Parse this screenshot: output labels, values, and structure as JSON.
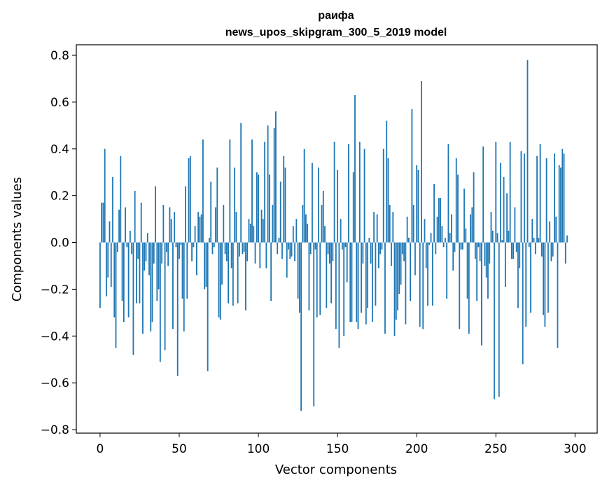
{
  "chart_data": {
    "type": "bar",
    "title": "раифа",
    "subtitle": "news_upos_skipgram_300_5_2019 model",
    "xlabel": "Vector components",
    "ylabel": "Components values",
    "xlim": [
      -15,
      314
    ],
    "ylim": [
      -0.815,
      0.845
    ],
    "xticks": [
      0,
      50,
      100,
      150,
      200,
      250,
      300
    ],
    "yticks": [
      -0.8,
      -0.6,
      -0.4,
      -0.2,
      0.0,
      0.2,
      0.4,
      0.6,
      0.8
    ],
    "ytick_labels": [
      "−0.8",
      "−0.6",
      "−0.4",
      "−0.2",
      "0.0",
      "0.2",
      "0.4",
      "0.6",
      "0.8"
    ],
    "bar_color": "#1f77b4",
    "values": [
      -0.28,
      0.17,
      0.17,
      0.4,
      -0.23,
      -0.15,
      0.09,
      -0.19,
      0.28,
      -0.32,
      -0.45,
      -0.04,
      0.14,
      0.37,
      -0.25,
      -0.34,
      0.15,
      -0.02,
      -0.32,
      0.05,
      -0.05,
      -0.48,
      0.22,
      -0.26,
      -0.07,
      -0.26,
      0.17,
      -0.39,
      -0.12,
      -0.08,
      0.04,
      -0.14,
      -0.38,
      -0.34,
      -0.09,
      0.24,
      -0.25,
      -0.2,
      -0.51,
      -0.09,
      0.16,
      -0.46,
      -0.04,
      -0.1,
      0.15,
      0.1,
      -0.37,
      0.13,
      -0.02,
      -0.57,
      -0.07,
      -0.01,
      -0.24,
      -0.38,
      0.24,
      -0.24,
      0.36,
      0.37,
      -0.08,
      -0.02,
      0.07,
      -0.14,
      0.13,
      0.11,
      0.12,
      0.44,
      -0.2,
      -0.19,
      -0.55,
      0.02,
      0.26,
      -0.05,
      -0.02,
      0.15,
      0.32,
      -0.32,
      -0.33,
      -0.18,
      0.16,
      -0.05,
      -0.08,
      -0.26,
      0.44,
      -0.11,
      -0.27,
      0.32,
      0.13,
      -0.26,
      -0.06,
      0.51,
      -0.05,
      -0.04,
      -0.29,
      -0.08,
      0.1,
      0.08,
      0.44,
      0.07,
      -0.09,
      0.3,
      0.29,
      -0.11,
      0.14,
      0.1,
      0.43,
      -0.11,
      0.5,
      0.29,
      -0.25,
      0.16,
      0.49,
      0.56,
      -0.05,
      0.02,
      0.26,
      -0.07,
      0.37,
      0.32,
      -0.15,
      -0.03,
      -0.07,
      -0.06,
      0.07,
      -0.08,
      0.1,
      -0.24,
      -0.3,
      -0.72,
      0.16,
      0.4,
      0.12,
      0.08,
      -0.29,
      -0.05,
      0.34,
      -0.7,
      -0.03,
      -0.32,
      0.32,
      -0.31,
      0.16,
      0.22,
      0.07,
      -0.28,
      -0.05,
      -0.09,
      -0.26,
      -0.08,
      0.43,
      -0.37,
      0.31,
      -0.45,
      0.1,
      -0.03,
      -0.4,
      -0.02,
      -0.17,
      0.42,
      -0.34,
      -0.34,
      0.3,
      0.63,
      -0.34,
      -0.37,
      0.43,
      -0.3,
      -0.09,
      0.4,
      -0.35,
      -0.28,
      0.02,
      -0.09,
      -0.34,
      0.13,
      -0.27,
      0.12,
      -0.11,
      -0.05,
      -0.03,
      0.4,
      -0.39,
      0.52,
      0.36,
      0.16,
      -0.1,
      0.13,
      -0.4,
      -0.33,
      -0.29,
      -0.22,
      -0.18,
      -0.05,
      -0.08,
      -0.35,
      0.11,
      0.02,
      -0.25,
      0.57,
      0.16,
      -0.14,
      0.33,
      0.31,
      -0.36,
      0.69,
      -0.37,
      0.1,
      -0.11,
      -0.27,
      -0.01,
      0.04,
      -0.27,
      0.25,
      -0.05,
      0.11,
      0.19,
      0.19,
      0.07,
      -0.02,
      0.02,
      -0.24,
      0.42,
      0.04,
      0.12,
      -0.12,
      -0.04,
      0.36,
      0.29,
      -0.37,
      -0.03,
      -0.03,
      0.23,
      0.06,
      -0.24,
      -0.39,
      0.12,
      0.15,
      0.3,
      -0.07,
      -0.25,
      -0.02,
      -0.08,
      -0.44,
      0.41,
      -0.1,
      -0.15,
      -0.24,
      -0.09,
      0.13,
      0.05,
      -0.67,
      0.43,
      0.04,
      -0.66,
      0.34,
      0.01,
      0.28,
      -0.19,
      0.21,
      0.05,
      0.43,
      -0.07,
      -0.07,
      0.15,
      -0.04,
      -0.28,
      -0.11,
      0.39,
      -0.52,
      0.38,
      -0.36,
      0.78,
      -0.02,
      -0.3,
      0.1,
      0.02,
      -0.05,
      0.37,
      0.02,
      0.42,
      -0.06,
      -0.31,
      -0.36,
      0.36,
      -0.3,
      0.09,
      -0.08,
      -0.06,
      0.38,
      0.11,
      -0.45,
      0.33,
      0.32,
      0.4,
      0.38,
      -0.09,
      0.03
    ]
  }
}
